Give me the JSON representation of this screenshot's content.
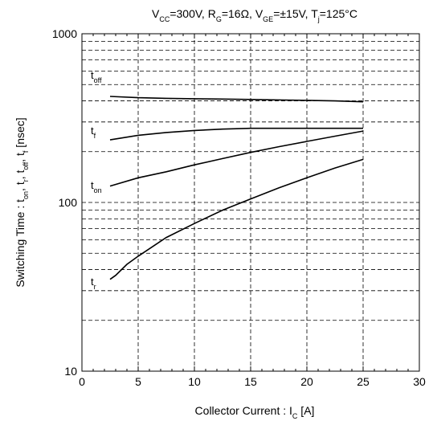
{
  "chart_data": {
    "type": "line",
    "title": {
      "parts": [
        {
          "t": "V"
        },
        {
          "t": "CC",
          "sub": true
        },
        {
          "t": "=300V, R"
        },
        {
          "t": "G",
          "sub": true
        },
        {
          "t": "=16Ω, V"
        },
        {
          "t": "GE",
          "sub": true
        },
        {
          "t": "=±15V, T"
        },
        {
          "t": "j",
          "sub": true
        },
        {
          "t": "=125°C"
        }
      ]
    },
    "xlabel": {
      "parts": [
        {
          "t": "Collector Current  :  I"
        },
        {
          "t": "C",
          "sub": true
        },
        {
          "t": "  [A]"
        }
      ]
    },
    "ylabel": {
      "parts": [
        {
          "t": "Switching Time :  t"
        },
        {
          "t": "on",
          "sub": true
        },
        {
          "t": ", t"
        },
        {
          "t": "r",
          "sub": true
        },
        {
          "t": ", t"
        },
        {
          "t": "off",
          "sub": true
        },
        {
          "t": ", t"
        },
        {
          "t": "f",
          "sub": true
        },
        {
          "t": "  [nsec]"
        }
      ]
    },
    "xlim": [
      0,
      30
    ],
    "ylim": [
      10,
      1000
    ],
    "yscale": "log",
    "grid": true,
    "x_ticks": [
      0,
      5,
      10,
      15,
      20,
      25,
      30
    ],
    "y_ticks": [
      {
        "value": 10,
        "label": "10"
      },
      {
        "value": 100,
        "label": "100"
      },
      {
        "value": 1000,
        "label": "1000"
      }
    ],
    "series": [
      {
        "name": "toff",
        "label_main": "t",
        "label_sub": "off",
        "x": [
          2.5,
          5,
          7.5,
          10,
          12.5,
          15,
          17.5,
          20,
          22.5,
          25
        ],
        "y": [
          425,
          418,
          414,
          412,
          410,
          408,
          405,
          403,
          400,
          395
        ]
      },
      {
        "name": "tf",
        "label_main": "t",
        "label_sub": "f",
        "x": [
          2.5,
          5,
          7.5,
          10,
          12.5,
          15,
          17.5,
          20,
          22.5,
          25
        ],
        "y": [
          235,
          250,
          260,
          267,
          272,
          275,
          275,
          275,
          275,
          275
        ]
      },
      {
        "name": "ton",
        "label_main": "t",
        "label_sub": "on",
        "x": [
          2.5,
          5,
          7.5,
          10,
          12.5,
          15,
          17.5,
          20,
          22.5,
          25
        ],
        "y": [
          125,
          140,
          152,
          167,
          182,
          198,
          214,
          230,
          247,
          265
        ]
      },
      {
        "name": "tr",
        "label_main": "t",
        "label_sub": "r",
        "x": [
          2.5,
          3,
          4,
          5,
          7.5,
          10,
          12.5,
          15,
          17.5,
          20,
          22.5,
          25
        ],
        "y": [
          35,
          37,
          43,
          48,
          62,
          75,
          90,
          105,
          122,
          140,
          160,
          180
        ]
      }
    ]
  }
}
